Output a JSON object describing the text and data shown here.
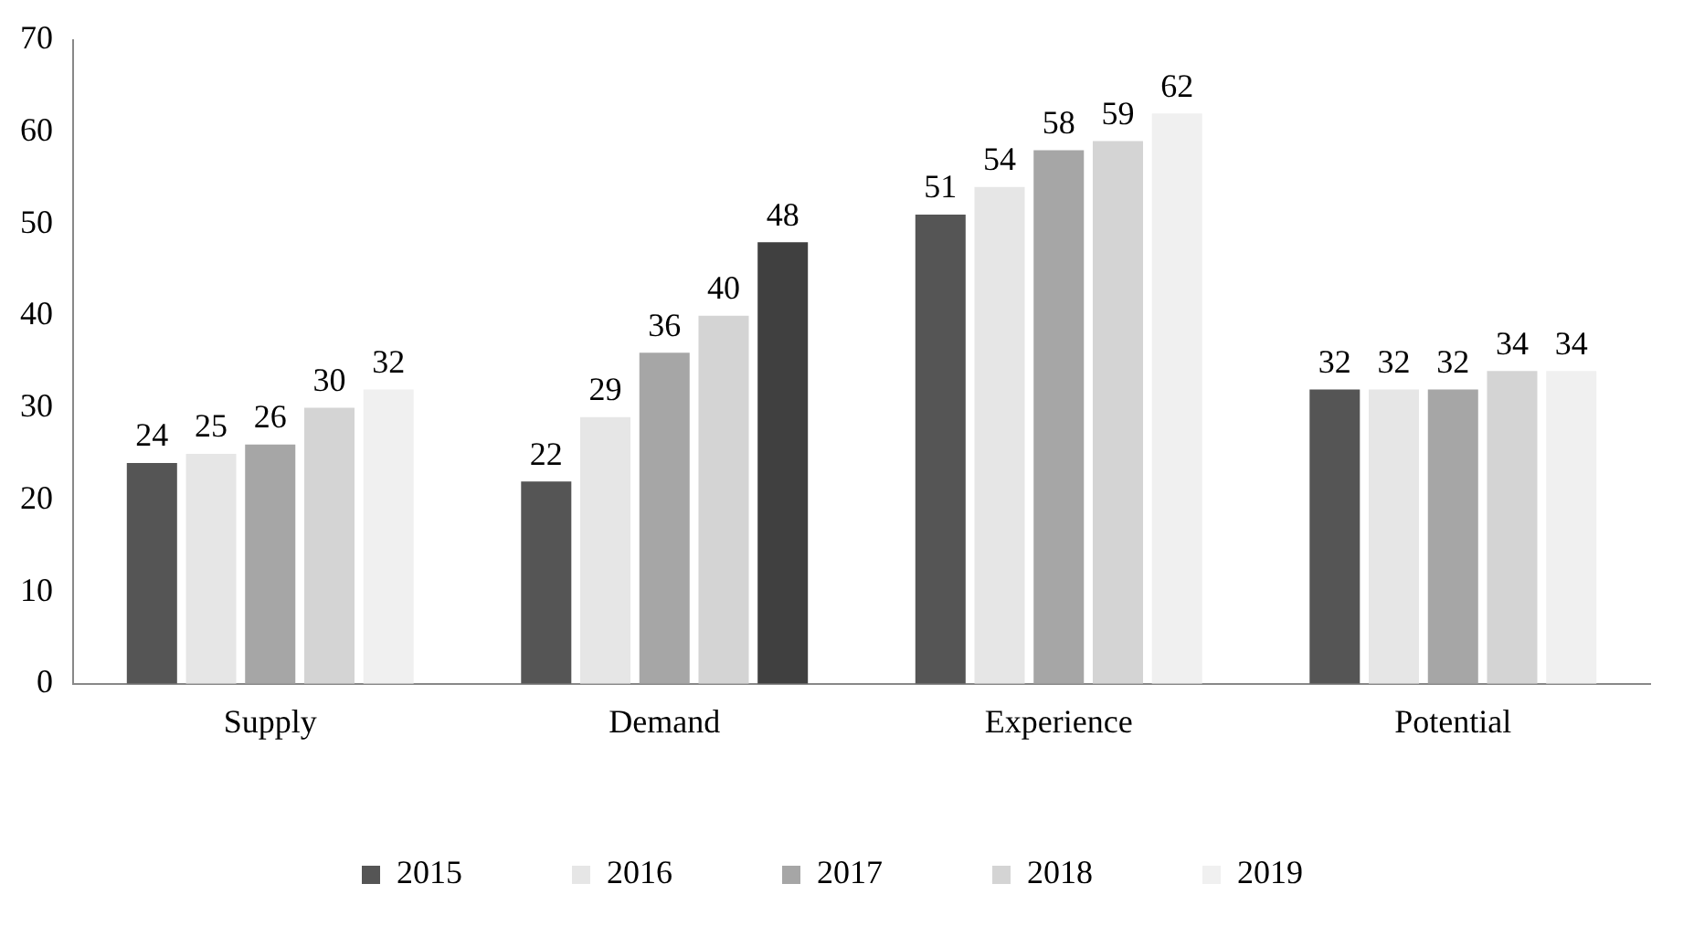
{
  "chart_data": {
    "type": "bar",
    "categories": [
      "Supply",
      "Demand",
      "Experience",
      "Potential"
    ],
    "series": [
      {
        "name": "2015",
        "color": "#555555",
        "values": [
          24,
          22,
          51,
          32
        ]
      },
      {
        "name": "2016",
        "color": "#e6e6e6",
        "values": [
          25,
          29,
          54,
          32
        ]
      },
      {
        "name": "2017",
        "color": "#a6a6a6",
        "values": [
          26,
          36,
          58,
          32
        ]
      },
      {
        "name": "2018",
        "color": "#d4d4d4",
        "values": [
          30,
          40,
          59,
          34
        ]
      },
      {
        "name": "2019",
        "colors": [
          "#f0f0f0",
          "#404040",
          "#f0f0f0",
          "#f0f0f0"
        ],
        "values": [
          32,
          48,
          62,
          34
        ]
      }
    ],
    "ylim": [
      0,
      70
    ],
    "yticks": [
      0,
      10,
      20,
      30,
      40,
      50,
      60,
      70
    ],
    "grid": false,
    "legend": "bottom",
    "data_labels": true
  }
}
